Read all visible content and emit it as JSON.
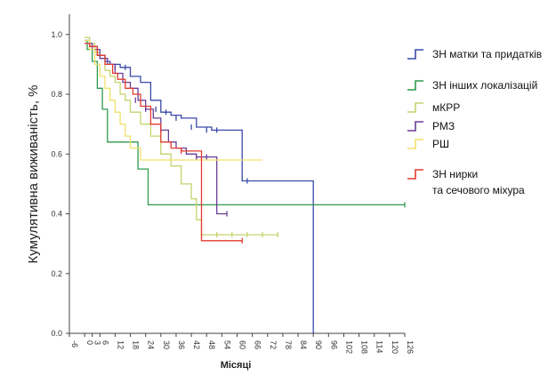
{
  "chart_data": {
    "type": "line",
    "title": "",
    "xlabel": "Місяці",
    "ylabel": "Кумулятивна виживаність, %",
    "xlim": [
      -6,
      126
    ],
    "ylim": [
      0,
      1.05
    ],
    "x_ticks": [
      -6,
      0,
      3,
      6,
      12,
      18,
      24,
      30,
      36,
      42,
      48,
      54,
      60,
      66,
      72,
      78,
      84,
      90,
      96,
      102,
      108,
      114,
      120,
      126
    ],
    "y_ticks": [
      0.0,
      0.2,
      0.4,
      0.6,
      0.8,
      1.0
    ],
    "y_tick_labels": [
      "0.0",
      "0.2",
      "0.4",
      "0.6",
      "0.8",
      "1.0"
    ],
    "grid": false,
    "legend_position": "right",
    "series": [
      {
        "name": "ЗН матки та придатків",
        "color": "#3a4aa8",
        "x": [
          0,
          2,
          5,
          8,
          10,
          14,
          18,
          22,
          26,
          30,
          34,
          38,
          44,
          50,
          56,
          62,
          68,
          74,
          80,
          86,
          90
        ],
        "y": [
          0.98,
          0.96,
          0.93,
          0.91,
          0.9,
          0.89,
          0.86,
          0.84,
          0.78,
          0.74,
          0.73,
          0.72,
          0.69,
          0.68,
          0.68,
          0.51,
          0.51,
          0.51,
          0.51,
          0.51,
          0.0
        ],
        "censored_x": [
          12,
          16,
          28,
          32,
          36,
          42,
          48,
          52,
          64
        ],
        "censored_y": [
          0.89,
          0.89,
          0.75,
          0.74,
          0.72,
          0.69,
          0.68,
          0.68,
          0.51
        ]
      },
      {
        "name": "ЗН інших локалізацій",
        "color": "#2e9a4c",
        "x": [
          0,
          1,
          3,
          5,
          7,
          9,
          13,
          17,
          21,
          25,
          29,
          33,
          39,
          45,
          55,
          70,
          90,
          110,
          126
        ],
        "y": [
          0.98,
          0.95,
          0.91,
          0.82,
          0.75,
          0.64,
          0.64,
          0.64,
          0.55,
          0.43,
          0.43,
          0.43,
          0.43,
          0.43,
          0.43,
          0.43,
          0.43,
          0.43,
          0.43
        ],
        "censored_x": [
          126
        ],
        "censored_y": [
          0.43
        ]
      },
      {
        "name": "мКРР",
        "color": "#c8d26e",
        "x": [
          0,
          2,
          4,
          6,
          8,
          10,
          12,
          14,
          16,
          18,
          22,
          26,
          30,
          34,
          38,
          42,
          44,
          46,
          50,
          54,
          60,
          66,
          72,
          76
        ],
        "y": [
          0.99,
          0.97,
          0.94,
          0.92,
          0.88,
          0.86,
          0.84,
          0.8,
          0.78,
          0.74,
          0.7,
          0.66,
          0.6,
          0.56,
          0.5,
          0.45,
          0.38,
          0.33,
          0.33,
          0.33,
          0.33,
          0.33,
          0.33,
          0.33
        ],
        "censored_x": [
          46,
          52,
          58,
          64,
          70,
          76
        ],
        "censored_y": [
          0.33,
          0.33,
          0.33,
          0.33,
          0.33,
          0.33
        ]
      },
      {
        "name": "РМЗ",
        "color": "#6a3c96",
        "x": [
          0,
          3,
          6,
          9,
          12,
          15,
          18,
          21,
          24,
          27,
          30,
          33,
          36,
          40,
          44,
          48,
          52,
          56
        ],
        "y": [
          0.97,
          0.95,
          0.92,
          0.9,
          0.87,
          0.84,
          0.82,
          0.78,
          0.75,
          0.72,
          0.68,
          0.64,
          0.62,
          0.6,
          0.59,
          0.59,
          0.4,
          0.4
        ],
        "censored_x": [
          20,
          24,
          30,
          44,
          48,
          56
        ],
        "censored_y": [
          0.78,
          0.75,
          0.68,
          0.59,
          0.59,
          0.4
        ]
      },
      {
        "name": "РШ",
        "color": "#f0e06a",
        "x": [
          0,
          2,
          4,
          6,
          8,
          10,
          12,
          14,
          16,
          18,
          22,
          26,
          30,
          40,
          50,
          60,
          70
        ],
        "y": [
          0.98,
          0.95,
          0.9,
          0.86,
          0.82,
          0.78,
          0.74,
          0.7,
          0.66,
          0.62,
          0.58,
          0.58,
          0.58,
          0.58,
          0.58,
          0.58,
          0.58
        ],
        "censored_x": [],
        "censored_y": []
      },
      {
        "name": "ЗН нирки\nта сечового міхура",
        "color": "#e23b2e",
        "x": [
          0,
          2,
          5,
          8,
          11,
          13,
          16,
          19,
          22,
          26,
          30,
          34,
          38,
          42,
          46,
          50,
          56,
          62
        ],
        "y": [
          0.97,
          0.96,
          0.93,
          0.9,
          0.87,
          0.85,
          0.82,
          0.8,
          0.76,
          0.7,
          0.64,
          0.62,
          0.61,
          0.61,
          0.31,
          0.31,
          0.31,
          0.31
        ],
        "censored_x": [
          38,
          62
        ],
        "censored_y": [
          0.61,
          0.31
        ]
      }
    ]
  }
}
